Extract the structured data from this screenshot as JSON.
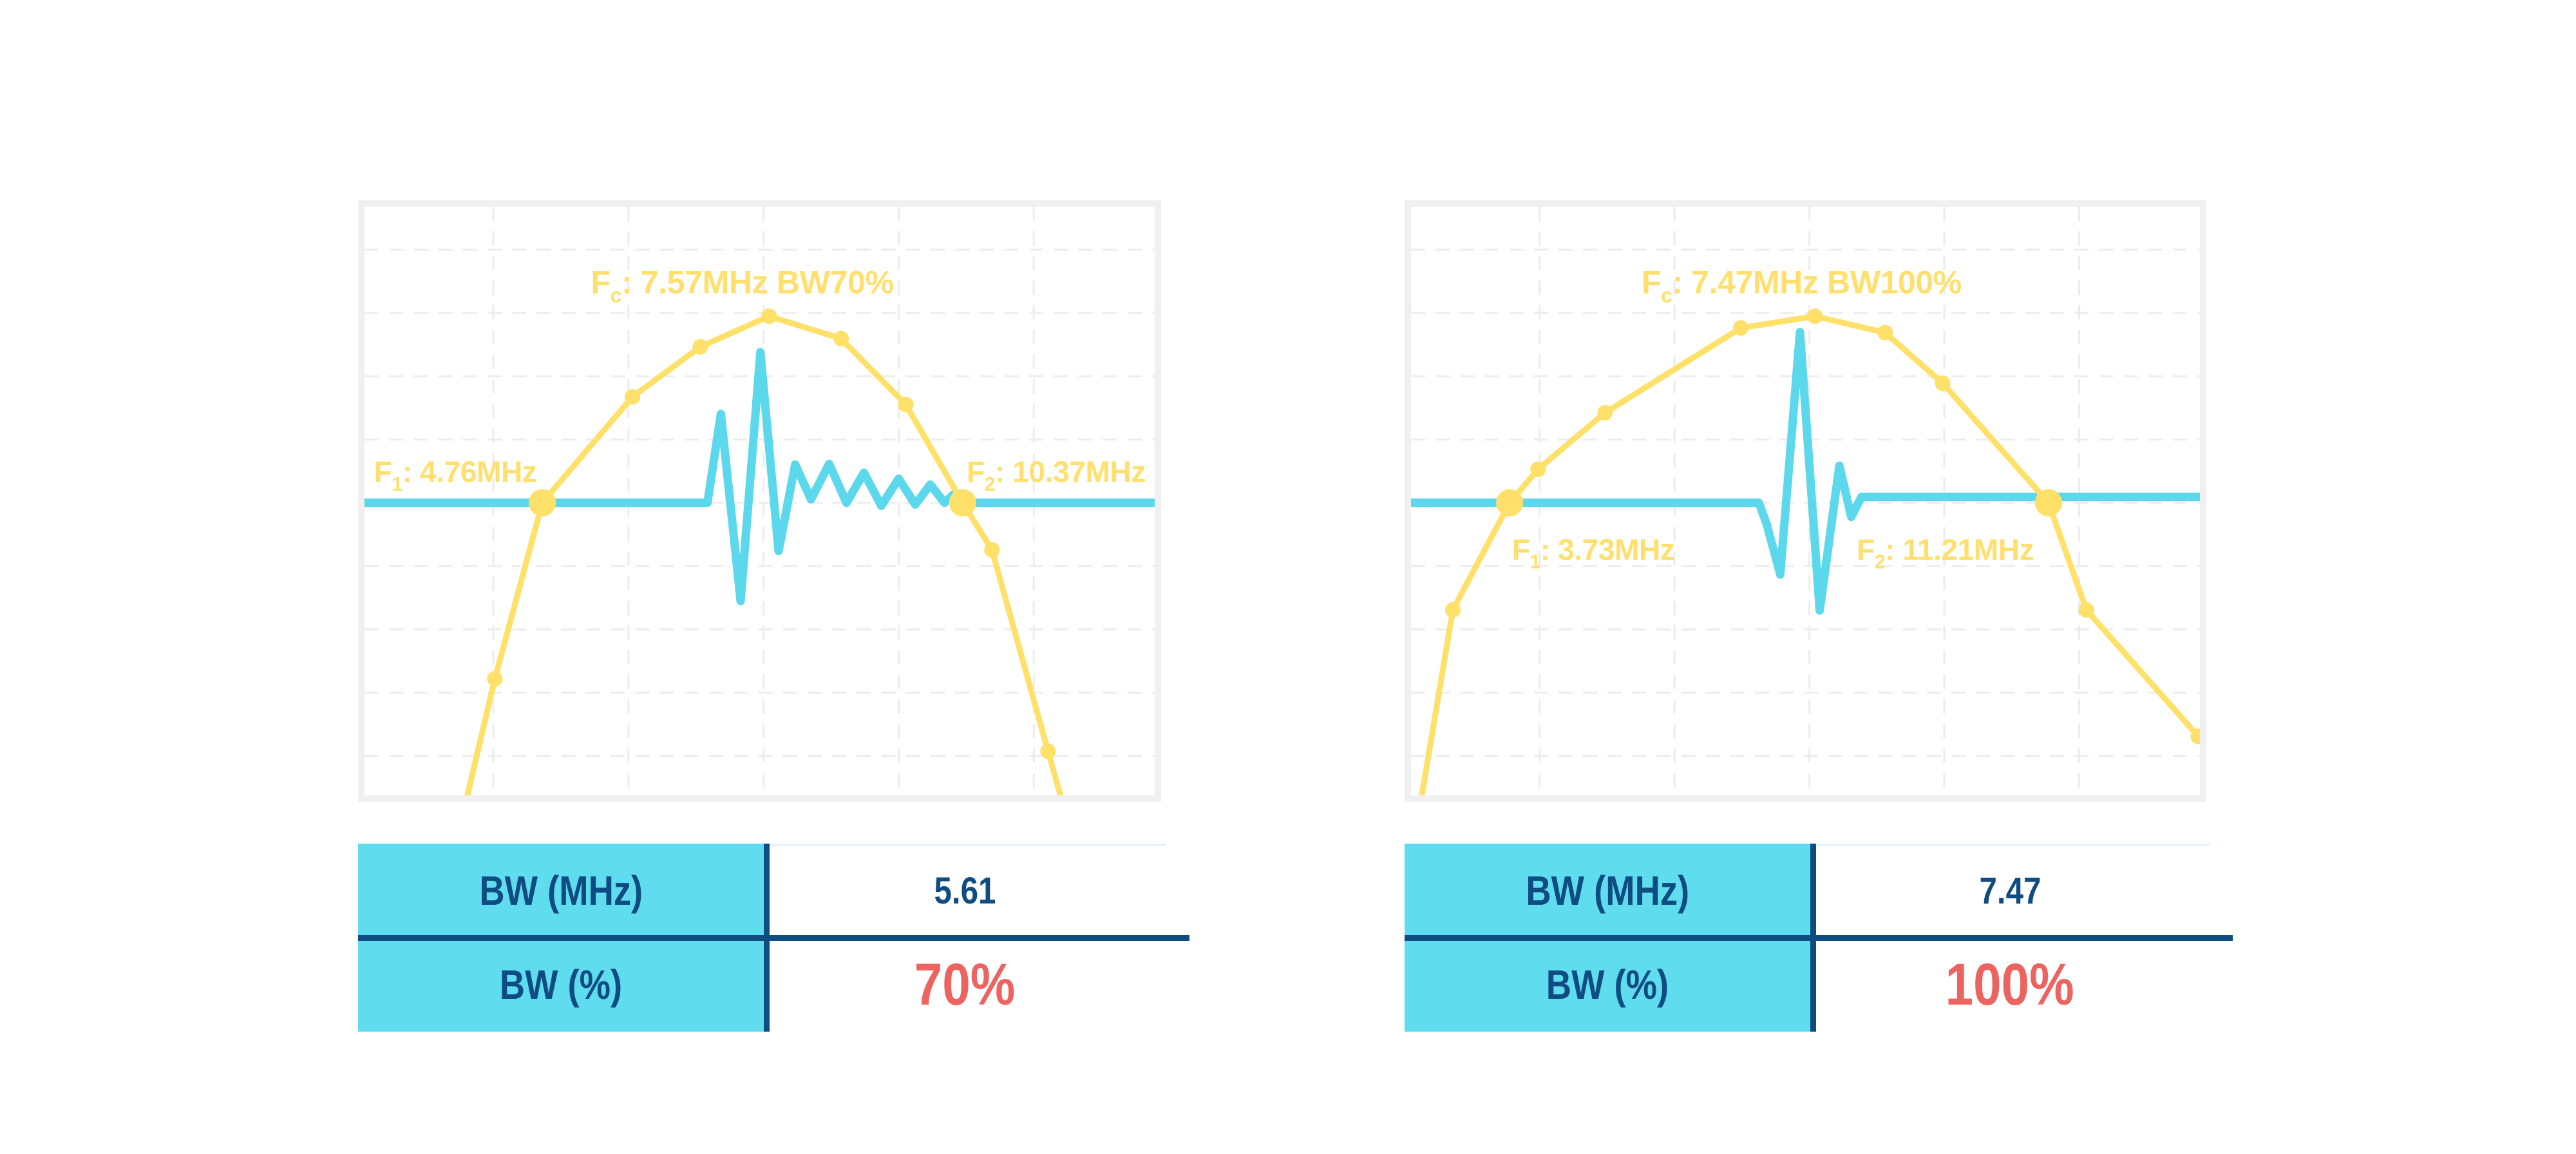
{
  "page": {
    "background": "#ffffff"
  },
  "colors": {
    "curve_yellow": "#ffe069",
    "label_yellow": "#ffe06e",
    "pulse_cyan": "#5bd8ec",
    "table_cyan": "#5fddef",
    "navy": "#0f4c82",
    "accent_red": "#ed6360",
    "grid": "#ececec",
    "panel_border": "#f0f0f0",
    "value_top_border": "#e4f4fa"
  },
  "chart_data": [
    {
      "type": "line",
      "title": "Fc: 7.57MHz BW70%",
      "axes": {
        "x_visible": false,
        "y_visible": false,
        "grid": "dashed",
        "legend": "none"
      },
      "key_values": {
        "fc_mhz": 7.57,
        "f1_mhz": 4.76,
        "f2_mhz": 10.37,
        "bw_mhz": 5.61,
        "bw_pct": 70
      },
      "annotations": {
        "fc": {
          "prefix": "F",
          "sub": "c",
          "rest": ": 7.57MHz BW70%",
          "x": 0.478,
          "y": 0.147,
          "anchor": "middle"
        },
        "f1": {
          "prefix": "F",
          "sub": "1",
          "rest": ": 4.76MHz",
          "x": 0.012,
          "y": 0.468,
          "anchor": "start"
        },
        "f2": {
          "prefix": "F",
          "sub": "2",
          "rest": ": 10.37MHz",
          "x": 0.762,
          "y": 0.468,
          "anchor": "start"
        }
      },
      "grid": {
        "v": [
          0.163,
          0.334,
          0.505,
          0.676,
          0.847
        ],
        "h": [
          0.073,
          0.1805,
          0.288,
          0.3955,
          0.503,
          0.6105,
          0.718,
          0.8255,
          0.933
        ]
      },
      "series": [
        {
          "name": "frequency-spectrum",
          "points": [
            [
              0.125,
              1.03
            ],
            [
              0.165,
              0.802
            ],
            [
              0.225,
              0.503
            ],
            [
              0.339,
              0.323
            ],
            [
              0.425,
              0.238
            ],
            [
              0.512,
              0.186
            ],
            [
              0.603,
              0.224
            ],
            [
              0.685,
              0.336
            ],
            [
              0.757,
              0.503
            ],
            [
              0.794,
              0.583
            ],
            [
              0.865,
              0.925
            ],
            [
              0.887,
              1.03
            ]
          ],
          "markers": [
            [
              0.165,
              0.802,
              "s"
            ],
            [
              0.225,
              0.503,
              "L"
            ],
            [
              0.339,
              0.323,
              "s"
            ],
            [
              0.425,
              0.238,
              "s"
            ],
            [
              0.512,
              0.186,
              "s"
            ],
            [
              0.603,
              0.224,
              "s"
            ],
            [
              0.685,
              0.336,
              "s"
            ],
            [
              0.757,
              0.503,
              "L"
            ],
            [
              0.794,
              0.583,
              "s"
            ],
            [
              0.865,
              0.925,
              "s"
            ]
          ]
        },
        {
          "name": "pulse-waveform",
          "points": [
            [
              0,
              0.503
            ],
            [
              0.434,
              0.503
            ],
            [
              0.451,
              0.352
            ],
            [
              0.476,
              0.67
            ],
            [
              0.501,
              0.247
            ],
            [
              0.524,
              0.585
            ],
            [
              0.545,
              0.438
            ],
            [
              0.565,
              0.497
            ],
            [
              0.588,
              0.437
            ],
            [
              0.61,
              0.503
            ],
            [
              0.632,
              0.452
            ],
            [
              0.654,
              0.508
            ],
            [
              0.676,
              0.462
            ],
            [
              0.697,
              0.506
            ],
            [
              0.716,
              0.472
            ],
            [
              0.734,
              0.503
            ],
            [
              0.747,
              0.487
            ],
            [
              0.758,
              0.503
            ],
            [
              1,
              0.503
            ]
          ]
        }
      ]
    },
    {
      "type": "line",
      "title": "Fc: 7.47MHz BW100%",
      "axes": {
        "x_visible": false,
        "y_visible": false,
        "grid": "dashed",
        "legend": "none"
      },
      "key_values": {
        "fc_mhz": 7.47,
        "f1_mhz": 3.73,
        "f2_mhz": 11.21,
        "bw_mhz": 7.47,
        "bw_pct": 100
      },
      "annotations": {
        "fc": {
          "prefix": "F",
          "sub": "c",
          "rest": ": 7.47MHz BW100%",
          "x": 0.495,
          "y": 0.147,
          "anchor": "middle"
        },
        "f1": {
          "prefix": "F",
          "sub": "1",
          "rest": ": 3.73MHz",
          "x": 0.128,
          "y": 0.6,
          "anchor": "start"
        },
        "f2": {
          "prefix": "F",
          "sub": "2",
          "rest": ": 11.21MHz",
          "x": 0.565,
          "y": 0.6,
          "anchor": "start"
        }
      },
      "grid": {
        "v": [
          0.163,
          0.334,
          0.505,
          0.676,
          0.847
        ],
        "h": [
          0.073,
          0.1805,
          0.288,
          0.3955,
          0.503,
          0.6105,
          0.718,
          0.8255,
          0.933
        ]
      },
      "series": [
        {
          "name": "frequency-spectrum",
          "points": [
            [
              0.01,
              1.03
            ],
            [
              0.053,
              0.685
            ],
            [
              0.125,
              0.503
            ],
            [
              0.161,
              0.446
            ],
            [
              0.246,
              0.35
            ],
            [
              0.418,
              0.206
            ],
            [
              0.512,
              0.186
            ],
            [
              0.601,
              0.214
            ],
            [
              0.674,
              0.3
            ],
            [
              0.808,
              0.503
            ],
            [
              0.856,
              0.685
            ],
            [
              0.998,
              0.9
            ]
          ],
          "markers": [
            [
              0.053,
              0.685,
              "s"
            ],
            [
              0.125,
              0.503,
              "L"
            ],
            [
              0.161,
              0.446,
              "s"
            ],
            [
              0.246,
              0.35,
              "s"
            ],
            [
              0.418,
              0.206,
              "s"
            ],
            [
              0.512,
              0.186,
              "s"
            ],
            [
              0.601,
              0.214,
              "s"
            ],
            [
              0.674,
              0.3,
              "s"
            ],
            [
              0.808,
              0.503,
              "L"
            ],
            [
              0.856,
              0.685,
              "s"
            ],
            [
              0.998,
              0.9,
              "s"
            ]
          ]
        },
        {
          "name": "pulse-waveform",
          "points": [
            [
              0,
              0.503
            ],
            [
              0.441,
              0.503
            ],
            [
              0.451,
              0.54
            ],
            [
              0.468,
              0.625
            ],
            [
              0.493,
              0.213
            ],
            [
              0.518,
              0.686
            ],
            [
              0.543,
              0.44
            ],
            [
              0.558,
              0.527
            ],
            [
              0.571,
              0.493
            ],
            [
              1,
              0.493
            ]
          ]
        }
      ]
    }
  ],
  "tables": [
    {
      "rows": [
        {
          "label": "BW (MHz)",
          "value": "5.61",
          "style": "navy"
        },
        {
          "label": "BW (%)",
          "value": "70%",
          "style": "red"
        }
      ]
    },
    {
      "rows": [
        {
          "label": "BW (MHz)",
          "value": "7.47",
          "style": "navy"
        },
        {
          "label": "BW (%)",
          "value": "100%",
          "style": "red"
        }
      ]
    }
  ]
}
